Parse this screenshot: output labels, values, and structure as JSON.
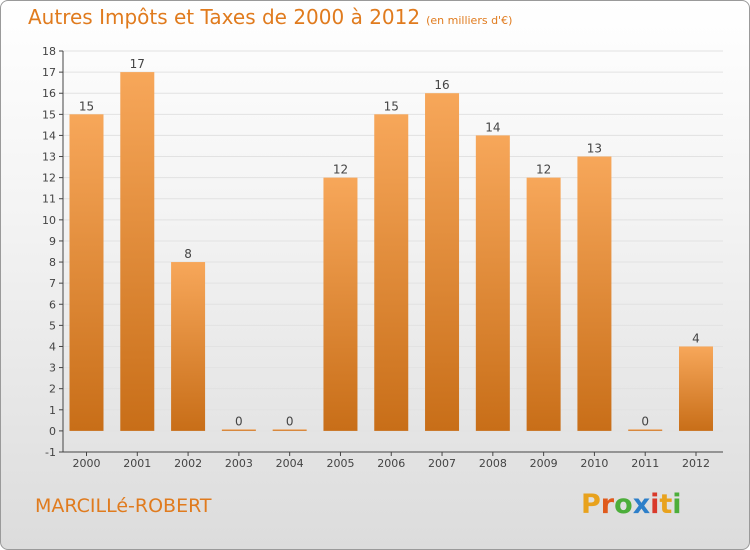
{
  "header": {
    "title": "Autres Impôts et Taxes de 2000 à 2012",
    "subtitle": "(en milliers d'€)"
  },
  "footer": {
    "town": "MARCILLé-ROBERT",
    "logo_letters": [
      "P",
      "r",
      "o",
      "x",
      "i",
      "t",
      "i"
    ],
    "logo_colors": [
      "#e8a21d",
      "#e05a1c",
      "#4cae3a",
      "#2d7fc9",
      "#d93a2b",
      "#e8a21d",
      "#4cae3a"
    ]
  },
  "colors": {
    "bar_light": "#f7a75a",
    "bar_dark": "#c86e18",
    "axis": "#444444",
    "grid": "#e2e2e2",
    "text_accent": "#e07b1e"
  },
  "chart_data": {
    "type": "bar",
    "title": "Autres Impôts et Taxes de 2000 à 2012",
    "subtitle": "(en milliers d'€)",
    "xlabel": "",
    "ylabel": "",
    "categories": [
      "2000",
      "2001",
      "2002",
      "2003",
      "2004",
      "2005",
      "2006",
      "2007",
      "2008",
      "2009",
      "2010",
      "2011",
      "2012"
    ],
    "values": [
      15,
      17,
      8,
      0,
      0,
      12,
      15,
      16,
      14,
      12,
      13,
      0,
      4
    ],
    "data_labels": [
      "15",
      "17",
      "8",
      "0",
      "0",
      "12",
      "15",
      "16",
      "14",
      "12",
      "13",
      "0",
      "4"
    ],
    "y_ticks": [
      "-1",
      "0",
      "1",
      "2",
      "3",
      "4",
      "5",
      "6",
      "7",
      "8",
      "9",
      "10",
      "11",
      "12",
      "13",
      "14",
      "15",
      "16",
      "17",
      "18"
    ],
    "ylim": [
      -1,
      18
    ],
    "grid": true,
    "legend": "none"
  }
}
